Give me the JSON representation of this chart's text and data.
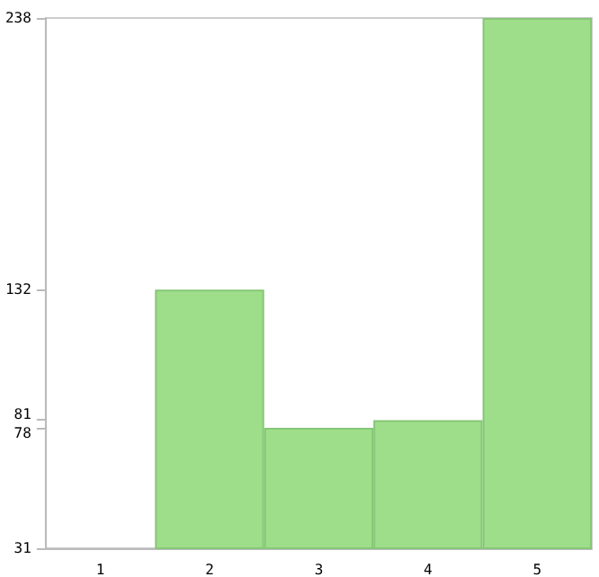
{
  "chart_data": {
    "type": "bar",
    "categories": [
      "1",
      "2",
      "3",
      "4",
      "5"
    ],
    "values": [
      31,
      132,
      78,
      81,
      238
    ],
    "color": "#9ede8a",
    "ylim": [
      31,
      238
    ],
    "yticks": [
      31,
      78,
      81,
      132,
      238
    ],
    "grid": false
  }
}
